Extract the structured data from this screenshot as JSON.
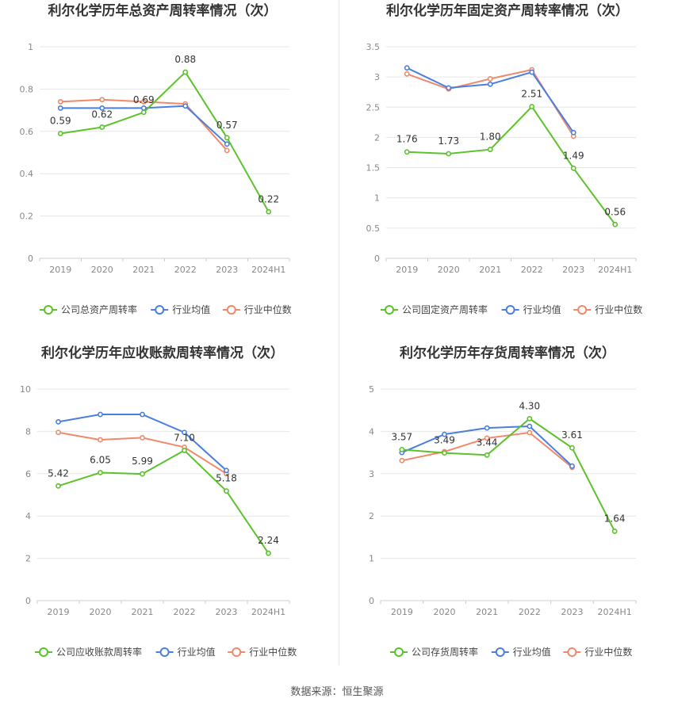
{
  "colors": {
    "company": "#5cc22b",
    "industry_avg": "#4a7ee0",
    "industry_median": "#f0896a",
    "grid": "#e6e6e6",
    "axis": "#cccccc",
    "tick_text": "#888888",
    "title_text": "#333333"
  },
  "legend_icon": "circle-line-marker",
  "source_text": "数据来源：恒生聚源",
  "chart_data": [
    {
      "type": "line",
      "title": "利尔化学历年总资产周转率情况（次）",
      "categories": [
        "2019",
        "2020",
        "2021",
        "2022",
        "2023",
        "2024H1"
      ],
      "ylim": [
        0,
        1
      ],
      "yticks": [
        0,
        0.2,
        0.4,
        0.6,
        0.8,
        1
      ],
      "ytick_labels": [
        "0",
        "0.2",
        "0.4",
        "0.6",
        "0.8",
        "1"
      ],
      "grid": true,
      "legend_position": "bottom",
      "series": [
        {
          "name": "公司总资产周转率",
          "color_key": "company",
          "values": [
            0.59,
            0.62,
            0.69,
            0.88,
            0.57,
            0.22
          ],
          "labels": [
            "0.59",
            "0.62",
            "0.69",
            "0.88",
            "0.57",
            "0.22"
          ]
        },
        {
          "name": "行业均值",
          "color_key": "industry_avg",
          "values": [
            0.71,
            0.71,
            0.71,
            0.72,
            0.54,
            null
          ]
        },
        {
          "name": "行业中位数",
          "color_key": "industry_median",
          "values": [
            0.74,
            0.75,
            0.74,
            0.73,
            0.51,
            null
          ]
        }
      ]
    },
    {
      "type": "line",
      "title": "利尔化学历年固定资产周转率情况（次）",
      "categories": [
        "2019",
        "2020",
        "2021",
        "2022",
        "2023",
        "2024H1"
      ],
      "ylim": [
        0,
        3.5
      ],
      "yticks": [
        0,
        0.5,
        1,
        1.5,
        2,
        2.5,
        3,
        3.5
      ],
      "ytick_labels": [
        "0",
        "0.5",
        "1",
        "1.5",
        "2",
        "2.5",
        "3",
        "3.5"
      ],
      "grid": true,
      "legend_position": "bottom",
      "series": [
        {
          "name": "公司固定资产周转率",
          "color_key": "company",
          "values": [
            1.76,
            1.73,
            1.8,
            2.51,
            1.49,
            0.56
          ],
          "labels": [
            "1.76",
            "1.73",
            "1.80",
            "2.51",
            "1.49",
            "0.56"
          ]
        },
        {
          "name": "行业均值",
          "color_key": "industry_avg",
          "values": [
            3.15,
            2.82,
            2.88,
            3.08,
            2.08,
            null
          ]
        },
        {
          "name": "行业中位数",
          "color_key": "industry_median",
          "values": [
            3.05,
            2.8,
            2.97,
            3.12,
            2.02,
            null
          ]
        }
      ]
    },
    {
      "type": "line",
      "title": "利尔化学历年应收账款周转率情况（次）",
      "categories": [
        "2019",
        "2020",
        "2021",
        "2022",
        "2023",
        "2024H1"
      ],
      "ylim": [
        0,
        10
      ],
      "yticks": [
        0,
        2,
        4,
        6,
        8,
        10
      ],
      "ytick_labels": [
        "0",
        "2",
        "4",
        "6",
        "8",
        "10"
      ],
      "grid": true,
      "legend_position": "bottom",
      "series": [
        {
          "name": "公司应收账款周转率",
          "color_key": "company",
          "values": [
            5.42,
            6.05,
            5.99,
            7.1,
            5.18,
            2.24
          ],
          "labels": [
            "5.42",
            "6.05",
            "5.99",
            "7.10",
            "5.18",
            "2.24"
          ]
        },
        {
          "name": "行业均值",
          "color_key": "industry_avg",
          "values": [
            8.45,
            8.8,
            8.8,
            7.95,
            6.15,
            null
          ]
        },
        {
          "name": "行业中位数",
          "color_key": "industry_median",
          "values": [
            7.95,
            7.6,
            7.7,
            7.25,
            6.0,
            null
          ]
        }
      ]
    },
    {
      "type": "line",
      "title": "利尔化学历年存货周转率情况（次）",
      "categories": [
        "2019",
        "2020",
        "2021",
        "2022",
        "2023",
        "2024H1"
      ],
      "ylim": [
        0,
        5
      ],
      "yticks": [
        0,
        1,
        2,
        3,
        4,
        5
      ],
      "ytick_labels": [
        "0",
        "1",
        "2",
        "3",
        "4",
        "5"
      ],
      "grid": true,
      "legend_position": "bottom",
      "series": [
        {
          "name": "公司存货周转率",
          "color_key": "company",
          "values": [
            3.57,
            3.49,
            3.44,
            4.3,
            3.61,
            1.64
          ],
          "labels": [
            "3.57",
            "3.49",
            "3.44",
            "4.30",
            "3.61",
            "1.64"
          ]
        },
        {
          "name": "行业均值",
          "color_key": "industry_avg",
          "values": [
            3.5,
            3.93,
            4.08,
            4.12,
            3.18,
            null
          ]
        },
        {
          "name": "行业中位数",
          "color_key": "industry_median",
          "values": [
            3.31,
            3.52,
            3.84,
            3.97,
            3.15,
            null
          ]
        }
      ]
    }
  ]
}
